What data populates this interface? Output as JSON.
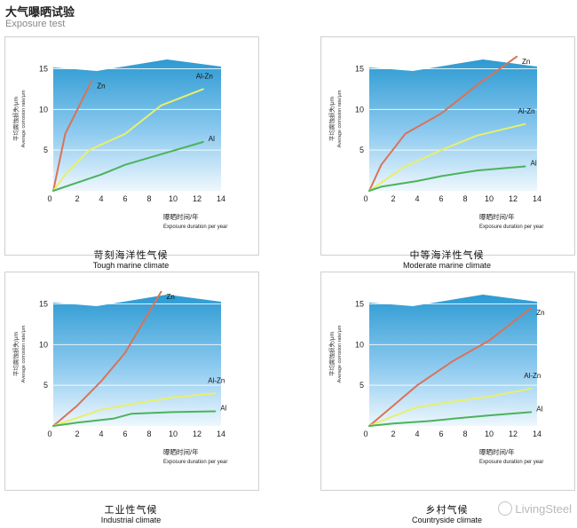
{
  "header": {
    "title": "大气曝晒试验",
    "subtitle": "Exposure test"
  },
  "watermark": {
    "text": "LivingSteel",
    "icon": "wechat-icon"
  },
  "axis_text": {
    "ylabel_cn": "平均腐蚀损失/μm",
    "ylabel_en": "Average corrosion rate/μm",
    "xlabel_cn": "曝晒时间/年",
    "xlabel_en": "Exposure duration per year"
  },
  "colors": {
    "zn": "#d8735a",
    "alzn": "#e8ef6a",
    "al": "#4bb35c",
    "panel_top": "#2c9ad2",
    "panel_bottom": "#eef7fd"
  },
  "chart_data": [
    {
      "type": "line",
      "title_cn": "苛刻海洋性气候",
      "title_en": "Tough marine climate",
      "xlabel": "曝晒时间/年 Exposure duration per year",
      "ylabel": "平均腐蚀损失/μm Average corrosion rate/μm",
      "xticks": [
        0,
        2,
        4,
        6,
        8,
        10,
        12,
        14
      ],
      "yticks": [
        5,
        10,
        15
      ],
      "xlim": [
        0,
        14
      ],
      "ylim": [
        0,
        18
      ],
      "series": [
        {
          "name": "Zn",
          "x": [
            0,
            1,
            3.2
          ],
          "y": [
            0,
            7,
            13.5
          ]
        },
        {
          "name": "Al-Zn",
          "x": [
            0,
            1,
            3,
            6,
            9,
            12.5
          ],
          "y": [
            0,
            2,
            5,
            7,
            10.5,
            12.5
          ]
        },
        {
          "name": "Al",
          "x": [
            0,
            2,
            4,
            6,
            9,
            12.5
          ],
          "y": [
            0,
            1,
            2,
            3.2,
            4.5,
            6
          ]
        }
      ]
    },
    {
      "type": "line",
      "title_cn": "中等海洋性气候",
      "title_en": "Moderate marine climate",
      "xlabel": "曝晒时间/年 Exposure duration per year",
      "ylabel": "平均腐蚀损失/μm Average corrosion rate/μm",
      "xticks": [
        0,
        2,
        4,
        6,
        8,
        10,
        12,
        14
      ],
      "yticks": [
        5,
        10,
        15
      ],
      "xlim": [
        0,
        14
      ],
      "ylim": [
        0,
        18
      ],
      "series": [
        {
          "name": "Zn",
          "x": [
            0,
            1,
            3,
            6,
            9,
            12.3
          ],
          "y": [
            0,
            3.2,
            7,
            9.5,
            13,
            16.5
          ]
        },
        {
          "name": "Al-Zn",
          "x": [
            0,
            1,
            3,
            6,
            9,
            13
          ],
          "y": [
            0,
            1,
            3,
            5,
            6.8,
            8.2
          ]
        },
        {
          "name": "Al",
          "x": [
            0,
            1,
            4,
            6,
            9,
            13
          ],
          "y": [
            0,
            0.5,
            1.2,
            1.8,
            2.5,
            3
          ]
        }
      ]
    },
    {
      "type": "line",
      "title_cn": "工业性气候",
      "title_en": "Industrial climate",
      "xlabel": "曝晒时间/年 Exposure duration per year",
      "ylabel": "平均腐蚀损失/μm Average corrosion rate/μm",
      "xticks": [
        0,
        2,
        4,
        6,
        8,
        10,
        12,
        14
      ],
      "yticks": [
        5,
        10,
        15
      ],
      "xlim": [
        0,
        14
      ],
      "ylim": [
        0,
        18
      ],
      "series": [
        {
          "name": "Zn",
          "x": [
            0,
            2,
            4,
            6,
            9
          ],
          "y": [
            0,
            2.5,
            5.5,
            9,
            16.5
          ]
        },
        {
          "name": "Al-Zn",
          "x": [
            0,
            2,
            4,
            7,
            10,
            13.5
          ],
          "y": [
            0,
            1,
            2,
            2.8,
            3.5,
            4
          ]
        },
        {
          "name": "Al",
          "x": [
            0,
            2,
            5,
            6.5,
            10,
            13.5
          ],
          "y": [
            0,
            0.4,
            0.9,
            1.5,
            1.7,
            1.8
          ]
        }
      ]
    },
    {
      "type": "line",
      "title_cn": "乡村气候",
      "title_en": "Countryside climate",
      "xlabel": "曝晒时间/年 Exposure duration per year",
      "ylabel": "平均腐蚀损失/μm Average corrosion rate/μm",
      "xticks": [
        0,
        2,
        4,
        6,
        8,
        10,
        12,
        14
      ],
      "yticks": [
        5,
        10,
        15
      ],
      "xlim": [
        0,
        14
      ],
      "ylim": [
        0,
        18
      ],
      "series": [
        {
          "name": "Zn",
          "x": [
            0,
            2,
            4,
            7,
            10,
            13.5
          ],
          "y": [
            0,
            2.5,
            5,
            8,
            10.5,
            14.5
          ]
        },
        {
          "name": "Al-Zn",
          "x": [
            0,
            2,
            4,
            7,
            10,
            13.5
          ],
          "y": [
            0,
            1.2,
            2.3,
            3,
            3.6,
            4.6
          ]
        },
        {
          "name": "Al",
          "x": [
            0,
            2,
            5,
            7,
            10,
            13.5
          ],
          "y": [
            0,
            0.3,
            0.6,
            0.9,
            1.3,
            1.7
          ]
        }
      ]
    }
  ]
}
